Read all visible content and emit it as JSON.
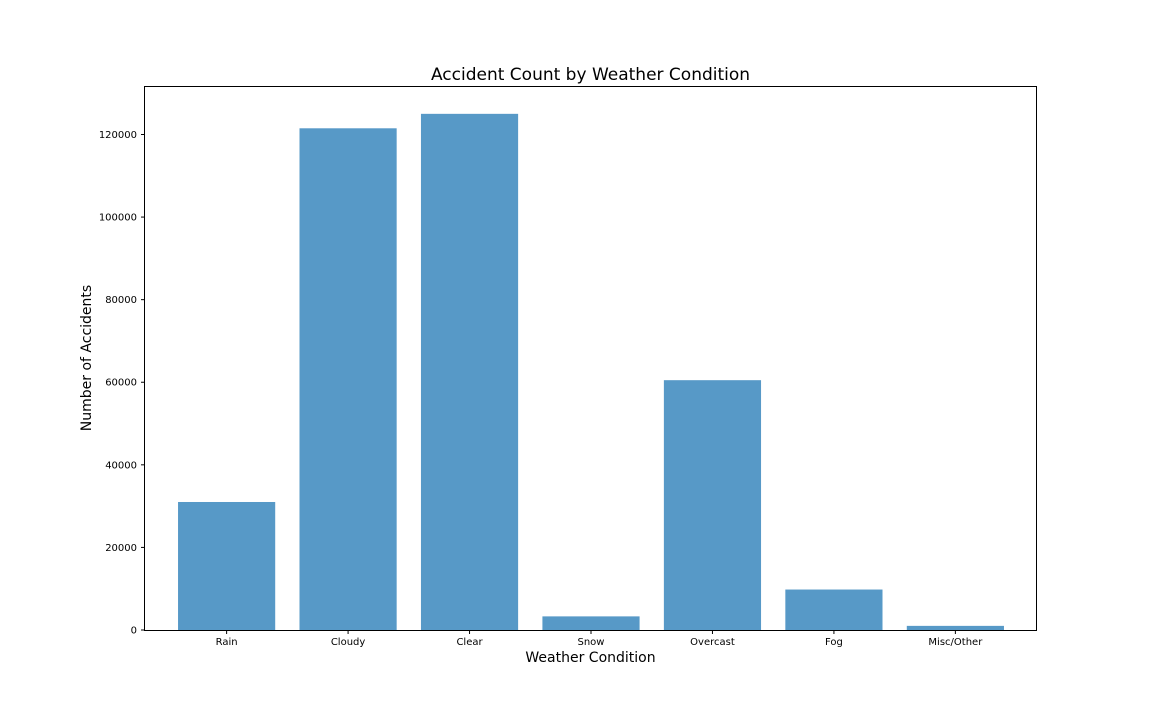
{
  "chart_data": {
    "type": "bar",
    "title": "Accident Count by Weather Condition",
    "xlabel": "Weather Condition",
    "ylabel": "Number of Accidents",
    "categories": [
      "Rain",
      "Cloudy",
      "Clear",
      "Snow",
      "Overcast",
      "Fog",
      "Misc/Other"
    ],
    "values": [
      31000,
      121500,
      125000,
      3300,
      60500,
      9800,
      1000
    ],
    "ylim": [
      0,
      131500
    ],
    "yticks": [
      0,
      20000,
      40000,
      60000,
      80000,
      100000,
      120000
    ],
    "bar_color": "#5799c7",
    "grid": false
  }
}
